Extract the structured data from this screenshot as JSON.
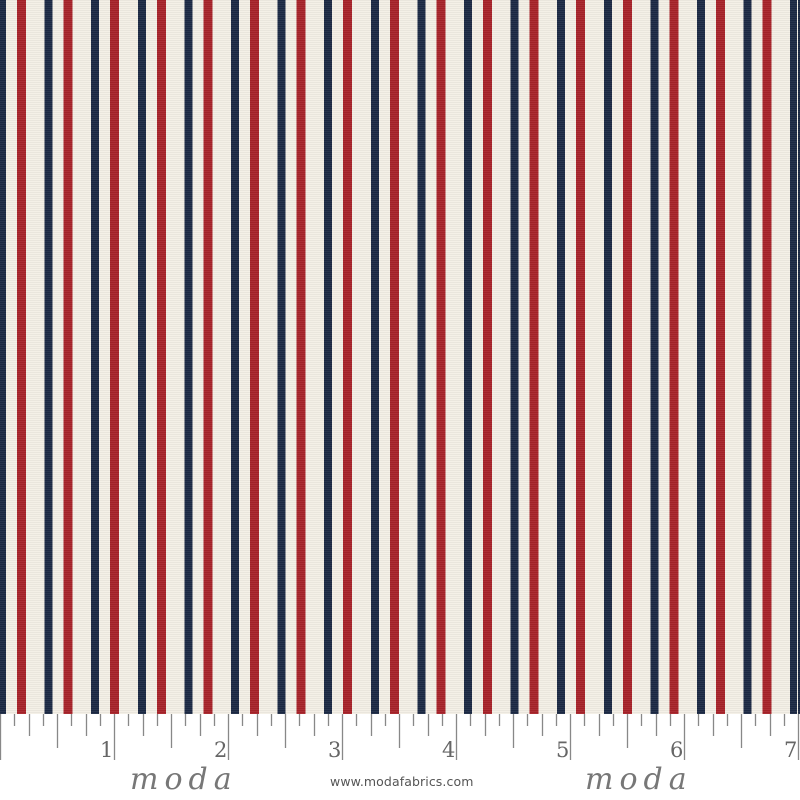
{
  "fabric": {
    "pattern": "vertical stripes",
    "colors": {
      "background": "#f3efe6",
      "navy": "#1c2a45",
      "red": "#a8232a"
    }
  },
  "ruler": {
    "unit_labels": [
      "1",
      "2",
      "3",
      "4",
      "5",
      "6",
      "7"
    ],
    "subdivisions_per_unit": 8
  },
  "brand": {
    "logo_left": "moda",
    "logo_right": "moda",
    "website": "www.modafabrics.com"
  }
}
